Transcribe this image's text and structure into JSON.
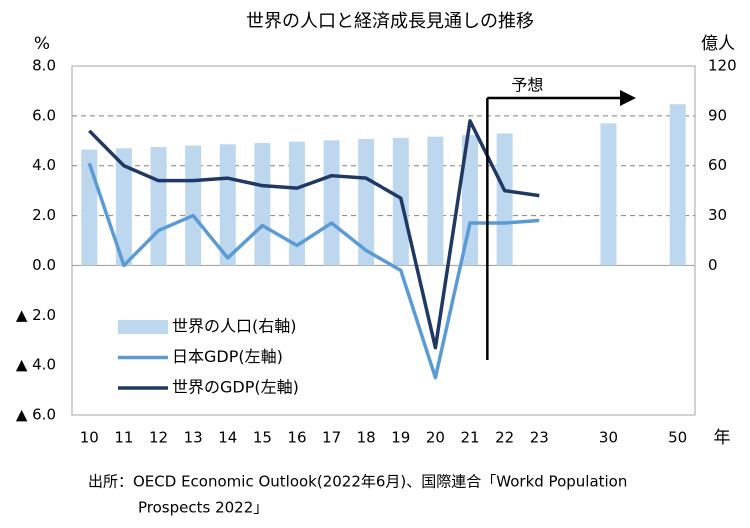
{
  "chart_data": {
    "type": "bar-line",
    "title": "世界の人口と経済成長見通しの推移",
    "y_label": "%",
    "y2_label": "億人",
    "x_label": "年",
    "annotation": "予想",
    "source": [
      "出所：OECD Economic Outlook(2022年6月)、国際連合「Workd Population",
      "Prospects 2022」"
    ],
    "categories": [
      "10",
      "11",
      "12",
      "13",
      "14",
      "15",
      "16",
      "17",
      "18",
      "19",
      "20",
      "21",
      "22",
      "23",
      null,
      "30",
      null,
      "50"
    ],
    "series": [
      {
        "name": "世界の人口(右軸)",
        "type": "bar",
        "axis": "y2",
        "color": "#bdd7ee",
        "values": [
          69.7,
          70.5,
          71.3,
          72.1,
          72.9,
          73.7,
          74.5,
          75.3,
          76.1,
          76.8,
          77.5,
          78.4,
          79.4,
          null,
          null,
          85.5,
          null,
          97
        ]
      },
      {
        "name": "日本GDP(左軸)",
        "type": "line",
        "color": "#5b9bd5",
        "values": [
          4.1,
          0.0,
          1.4,
          2.0,
          0.3,
          1.6,
          0.8,
          1.7,
          0.6,
          -0.2,
          -4.5,
          1.7,
          1.7,
          1.8,
          null,
          null,
          null,
          null
        ]
      },
      {
        "name": "世界のGDP(左軸)",
        "type": "line",
        "color": "#1f3864",
        "values": [
          5.4,
          4.0,
          3.4,
          3.4,
          3.5,
          3.2,
          3.1,
          3.6,
          3.5,
          2.7,
          -3.3,
          5.8,
          3.0,
          2.8,
          null,
          null,
          null,
          null
        ]
      }
    ],
    "ylim": [
      -6,
      8
    ],
    "yticks": [
      {
        "value": 8,
        "label": "8.0"
      },
      {
        "value": 6,
        "label": "6.0"
      },
      {
        "value": 4,
        "label": "4.0"
      },
      {
        "value": 2,
        "label": "2.0"
      },
      {
        "value": 0,
        "label": "0.0"
      },
      {
        "value": -2,
        "label": "▲ 2.0"
      },
      {
        "value": -4,
        "label": "▲ 4.0"
      },
      {
        "value": -6,
        "label": "▲ 6.0"
      }
    ],
    "y2lim": [
      -90,
      120
    ],
    "y2ticks": [
      0,
      30,
      60,
      90,
      120
    ],
    "grid": true,
    "legend": "lower left"
  }
}
